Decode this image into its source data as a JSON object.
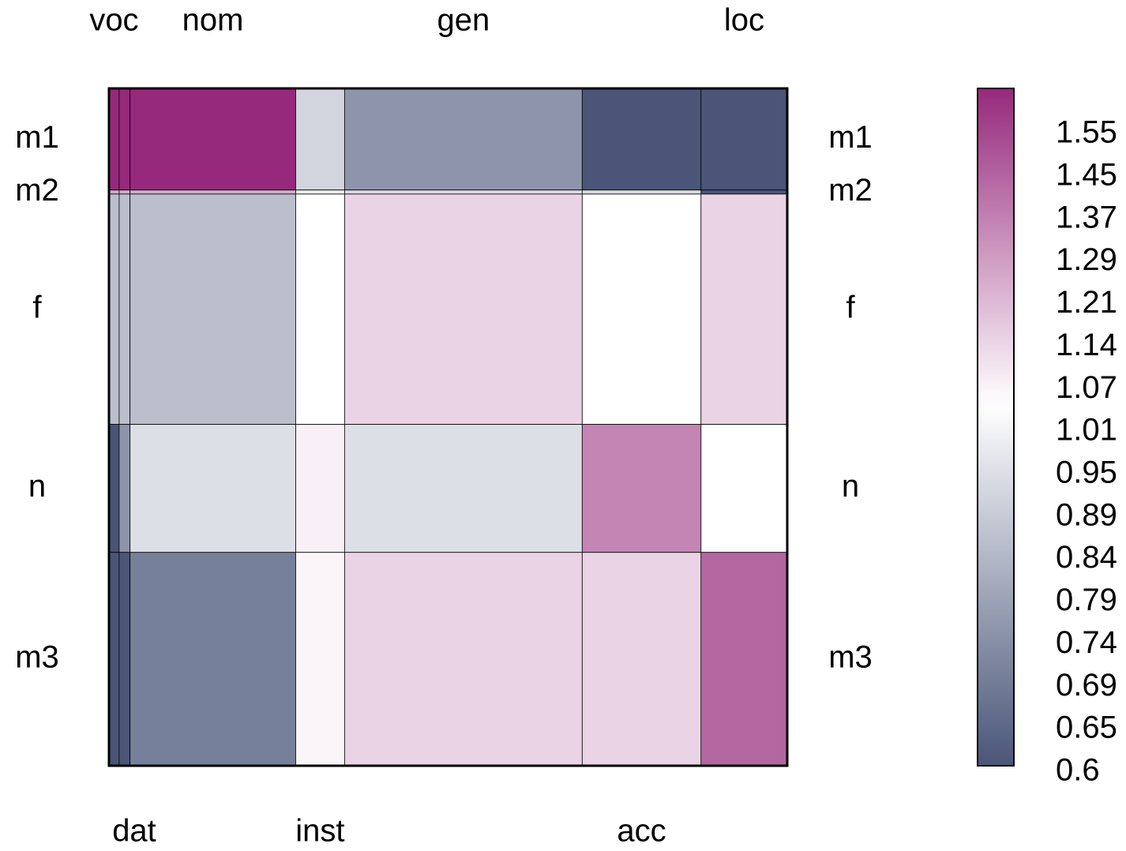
{
  "chart_data": {
    "type": "mosaic",
    "columns": [
      "voc",
      "dat",
      "nom",
      "inst",
      "gen",
      "acc",
      "loc"
    ],
    "column_shares": [
      1.5,
      1.6,
      24.4,
      7.2,
      35.0,
      17.5,
      12.7
    ],
    "rows": [
      "m1",
      "m2",
      "f",
      "n",
      "m3"
    ],
    "row_shares": [
      15.0,
      0.6,
      34.0,
      18.9,
      31.5
    ],
    "values": [
      [
        1.55,
        1.55,
        1.55,
        0.89,
        0.74,
        0.6,
        0.6
      ],
      [
        1.2,
        1.2,
        1.2,
        0.95,
        0.9,
        0.9,
        0.6
      ],
      [
        0.84,
        0.84,
        0.84,
        1.01,
        1.1,
        1.01,
        1.1
      ],
      [
        0.6,
        0.74,
        0.92,
        1.04,
        0.92,
        1.29,
        1.01
      ],
      [
        0.6,
        0.6,
        0.69,
        1.03,
        1.1,
        1.1,
        1.37
      ]
    ],
    "legend_ticks": [
      0.6,
      0.65,
      0.69,
      0.74,
      0.79,
      0.84,
      0.89,
      0.95,
      1.01,
      1.07,
      1.14,
      1.21,
      1.29,
      1.37,
      1.45,
      1.55
    ],
    "color_low": "#4a5578",
    "color_center_value": 1.01,
    "color_center": "#ffffff",
    "color_high": "#96297c"
  }
}
